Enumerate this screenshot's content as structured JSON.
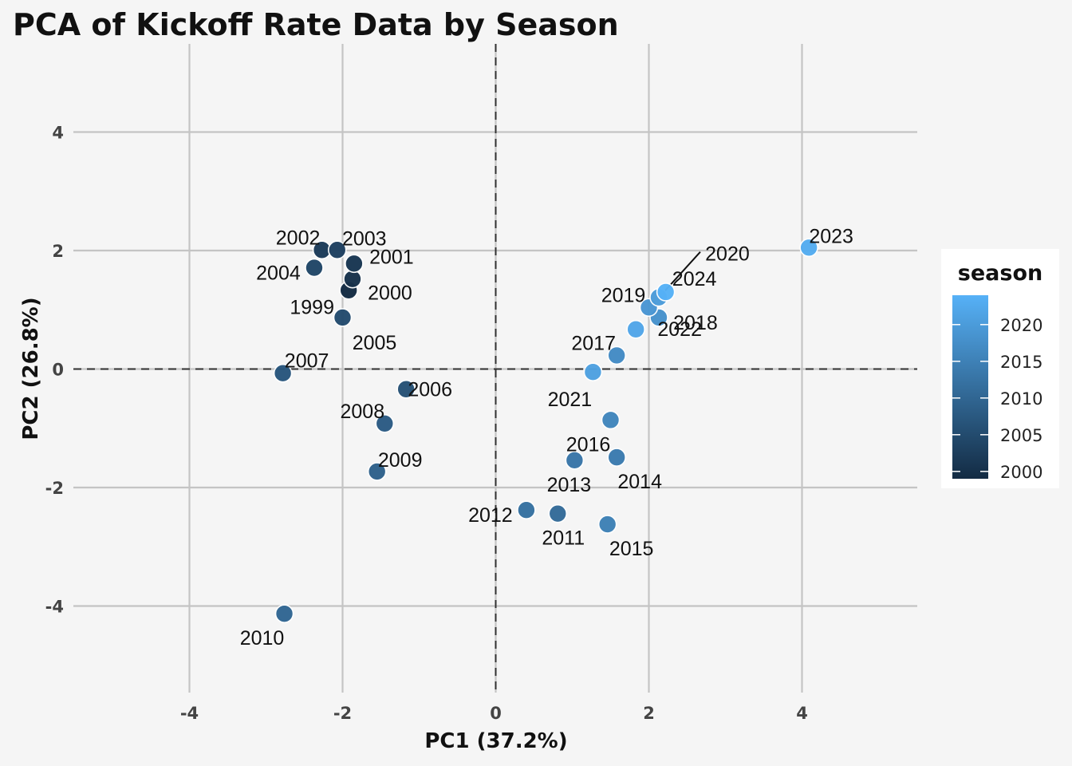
{
  "chart_data": {
    "type": "scatter",
    "title": "PCA of Kickoff Rate Data by Season",
    "xlabel": "PC1 (37.2%)",
    "ylabel": "PC2 (26.8%)",
    "xlim": [
      -5.5,
      5.5
    ],
    "ylim": [
      -5.5,
      5.5
    ],
    "xticks": [
      -4,
      -2,
      0,
      2,
      4
    ],
    "yticks": [
      -4,
      -2,
      0,
      2,
      4
    ],
    "xtick_labels": [
      "-4",
      "-2",
      "0",
      "2",
      "4"
    ],
    "ytick_labels": [
      "-4",
      "-2",
      "0",
      "2",
      "4"
    ],
    "grid": true,
    "reference_lines": {
      "x": 0,
      "y": 0,
      "style": "dashed"
    },
    "legend": {
      "title": "season",
      "placement": "right",
      "type": "colorbar",
      "range": [
        1999,
        2024
      ],
      "ticks": [
        2000,
        2005,
        2010,
        2015,
        2020
      ],
      "tick_labels": [
        "2000",
        "2005",
        "2010",
        "2015",
        "2020"
      ],
      "color_low": "#132b43",
      "color_high": "#56b1f7"
    },
    "points": [
      {
        "label": "1999",
        "x": -1.92,
        "y": 1.33,
        "season": 1999
      },
      {
        "label": "2000",
        "x": -1.87,
        "y": 1.52,
        "season": 2000
      },
      {
        "label": "2001",
        "x": -1.85,
        "y": 1.78,
        "season": 2001
      },
      {
        "label": "2002",
        "x": -2.27,
        "y": 2.01,
        "season": 2002
      },
      {
        "label": "2003",
        "x": -2.07,
        "y": 2.01,
        "season": 2003
      },
      {
        "label": "2004",
        "x": -2.37,
        "y": 1.71,
        "season": 2004
      },
      {
        "label": "2005",
        "x": -2.0,
        "y": 0.87,
        "season": 2005
      },
      {
        "label": "2006",
        "x": -1.17,
        "y": -0.34,
        "season": 2006
      },
      {
        "label": "2007",
        "x": -2.78,
        "y": -0.07,
        "season": 2007
      },
      {
        "label": "2008",
        "x": -1.45,
        "y": -0.92,
        "season": 2008
      },
      {
        "label": "2009",
        "x": -1.55,
        "y": -1.73,
        "season": 2009
      },
      {
        "label": "2010",
        "x": -2.76,
        "y": -4.13,
        "season": 2010
      },
      {
        "label": "2011",
        "x": 0.81,
        "y": -2.44,
        "season": 2011
      },
      {
        "label": "2012",
        "x": 0.4,
        "y": -2.38,
        "season": 2012
      },
      {
        "label": "2013",
        "x": 1.03,
        "y": -1.54,
        "season": 2013
      },
      {
        "label": "2014",
        "x": 1.58,
        "y": -1.49,
        "season": 2014
      },
      {
        "label": "2015",
        "x": 1.46,
        "y": -2.62,
        "season": 2015
      },
      {
        "label": "2016",
        "x": 1.5,
        "y": -0.86,
        "season": 2016
      },
      {
        "label": "2017",
        "x": 1.58,
        "y": 0.23,
        "season": 2017
      },
      {
        "label": "2018",
        "x": 2.13,
        "y": 0.87,
        "season": 2018
      },
      {
        "label": "2019",
        "x": 2.0,
        "y": 1.04,
        "season": 2019
      },
      {
        "label": "2020",
        "x": 2.13,
        "y": 1.21,
        "season": 2020
      },
      {
        "label": "2021",
        "x": 1.27,
        "y": -0.05,
        "season": 2021
      },
      {
        "label": "2022",
        "x": 1.83,
        "y": 0.67,
        "season": 2022
      },
      {
        "label": "2023",
        "x": 4.09,
        "y": 2.05,
        "season": 2023
      },
      {
        "label": "2024",
        "x": 2.22,
        "y": 1.3,
        "season": 2024
      }
    ]
  }
}
